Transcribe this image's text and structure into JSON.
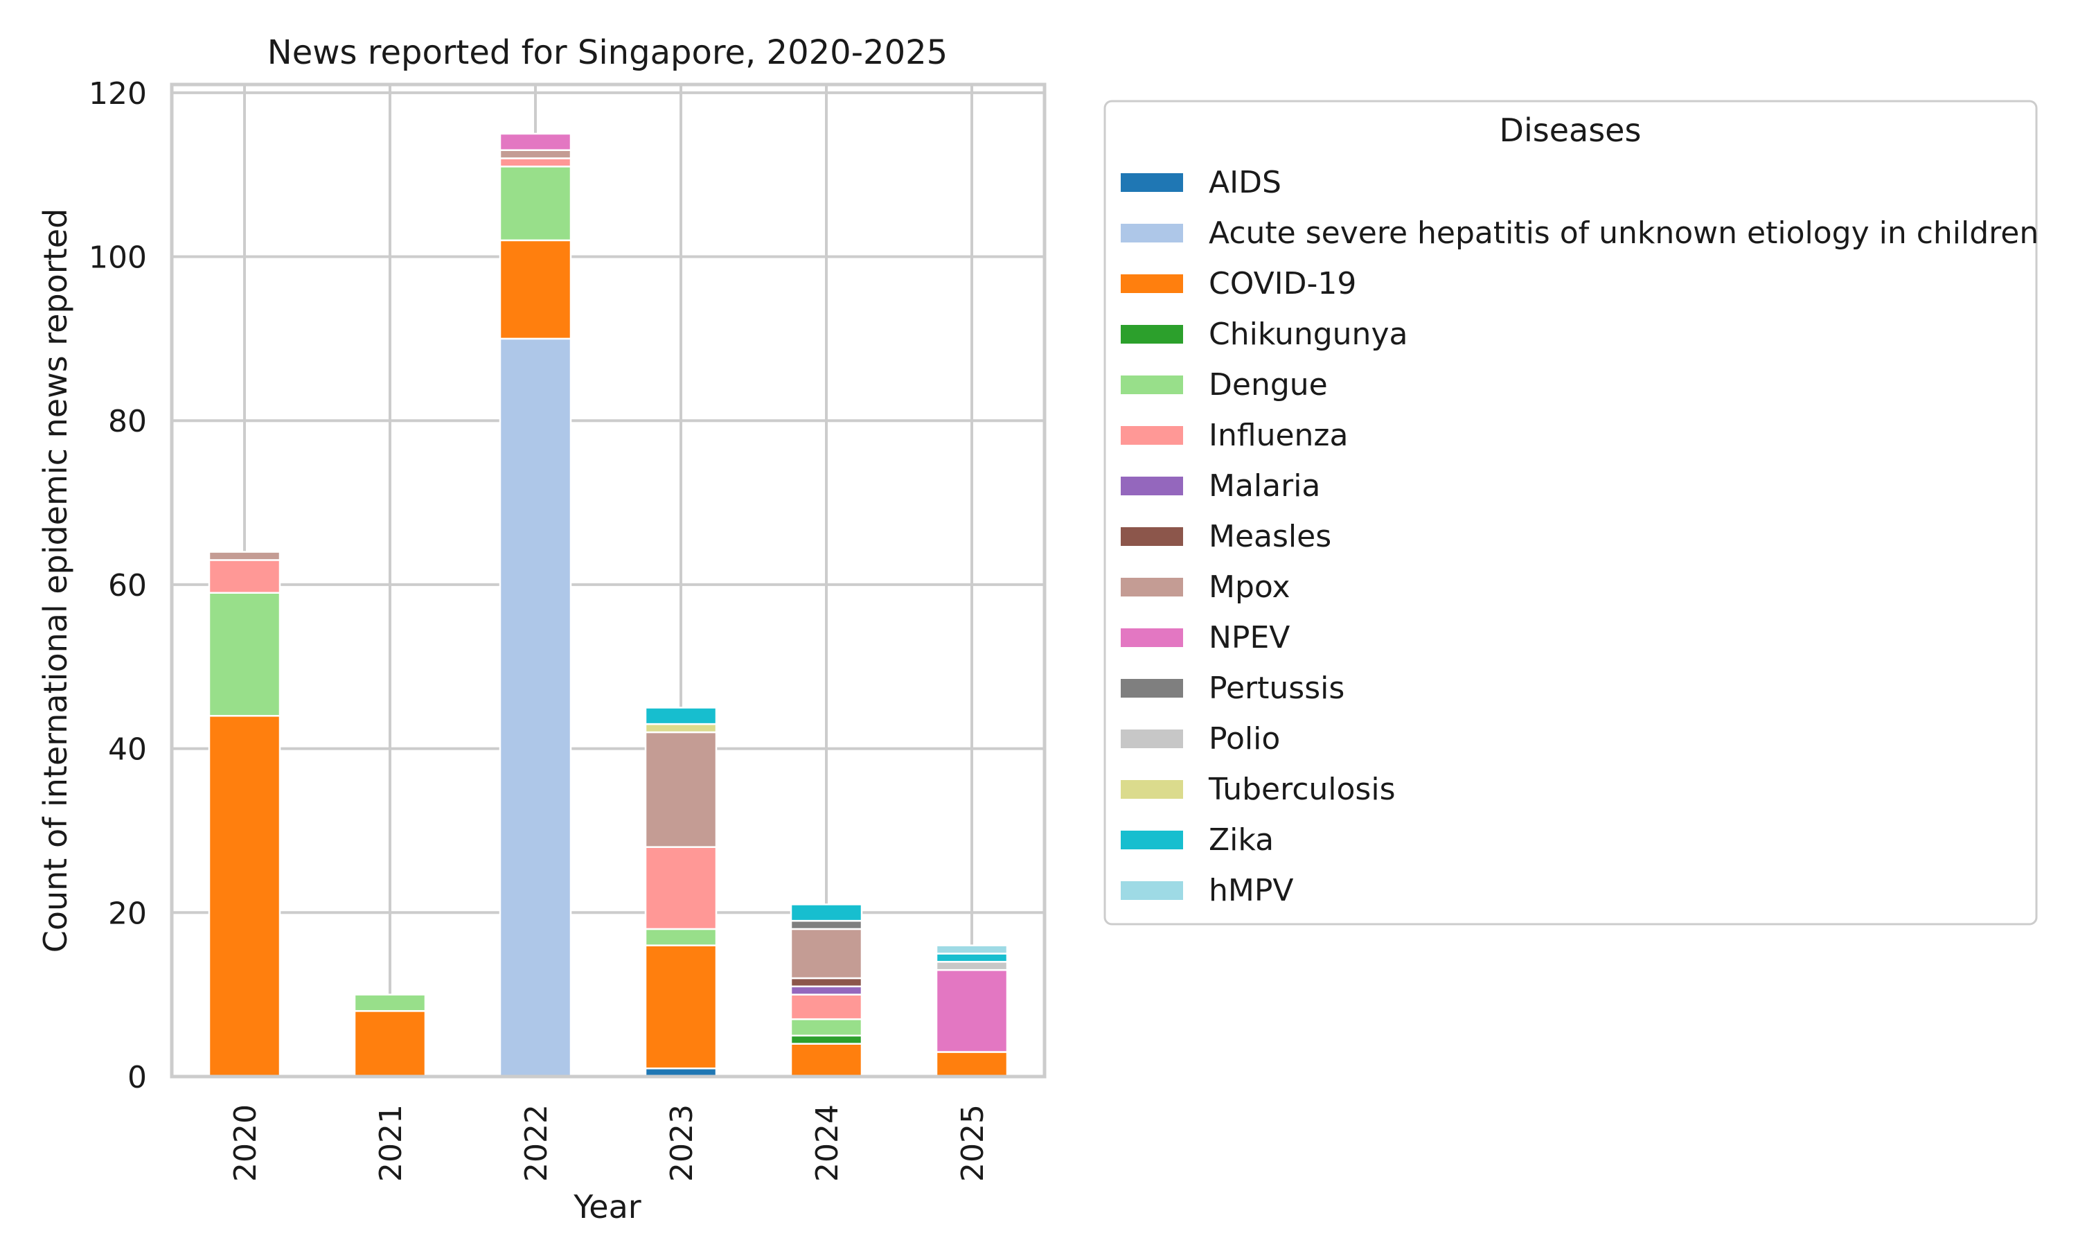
{
  "chart_data": {
    "type": "bar",
    "stacked": true,
    "title": "News reported for Singapore, 2020-2025",
    "xlabel": "Year",
    "ylabel": "Count of international epidemic news reported",
    "ylim": [
      0,
      121
    ],
    "yticks": [
      0,
      20,
      40,
      60,
      80,
      100,
      120
    ],
    "grid": true,
    "categories": [
      "2020",
      "2021",
      "2022",
      "2023",
      "2024",
      "2025"
    ],
    "legend": {
      "title": "Diseases",
      "placement": "right"
    },
    "series": [
      {
        "name": "AIDS",
        "color": "#1f77b4",
        "values": [
          0,
          0,
          0,
          1,
          0,
          0
        ]
      },
      {
        "name": "Acute severe hepatitis of unknown etiology in children",
        "color": "#aec7e8",
        "values": [
          0,
          0,
          90,
          0,
          0,
          0
        ]
      },
      {
        "name": "COVID-19",
        "color": "#ff7f0e",
        "values": [
          44,
          8,
          12,
          15,
          4,
          3
        ]
      },
      {
        "name": "Chikungunya",
        "color": "#2ca02c",
        "values": [
          0,
          0,
          0,
          0,
          1,
          0
        ]
      },
      {
        "name": "Dengue",
        "color": "#98df8a",
        "values": [
          15,
          2,
          9,
          2,
          2,
          0
        ]
      },
      {
        "name": "Influenza",
        "color": "#ff9896",
        "values": [
          4,
          0,
          1,
          10,
          3,
          0
        ]
      },
      {
        "name": "Malaria",
        "color": "#9467bd",
        "values": [
          0,
          0,
          0,
          0,
          1,
          0
        ]
      },
      {
        "name": "Measles",
        "color": "#8c564b",
        "values": [
          0,
          0,
          0,
          0,
          1,
          0
        ]
      },
      {
        "name": "Mpox",
        "color": "#c49c94",
        "values": [
          1,
          0,
          1,
          14,
          6,
          0
        ]
      },
      {
        "name": "NPEV",
        "color": "#e377c2",
        "values": [
          0,
          0,
          2,
          0,
          0,
          10
        ]
      },
      {
        "name": "Pertussis",
        "color": "#7f7f7f",
        "values": [
          0,
          0,
          0,
          0,
          1,
          0
        ]
      },
      {
        "name": "Polio",
        "color": "#c7c7c7",
        "values": [
          0,
          0,
          0,
          0,
          0,
          1
        ]
      },
      {
        "name": "Tuberculosis",
        "color": "#dbdb8d",
        "values": [
          0,
          0,
          0,
          1,
          0,
          0
        ]
      },
      {
        "name": "Zika",
        "color": "#17becf",
        "values": [
          0,
          0,
          0,
          2,
          2,
          1
        ]
      },
      {
        "name": "hMPV",
        "color": "#9edae5",
        "values": [
          0,
          0,
          0,
          0,
          0,
          1
        ]
      }
    ]
  }
}
